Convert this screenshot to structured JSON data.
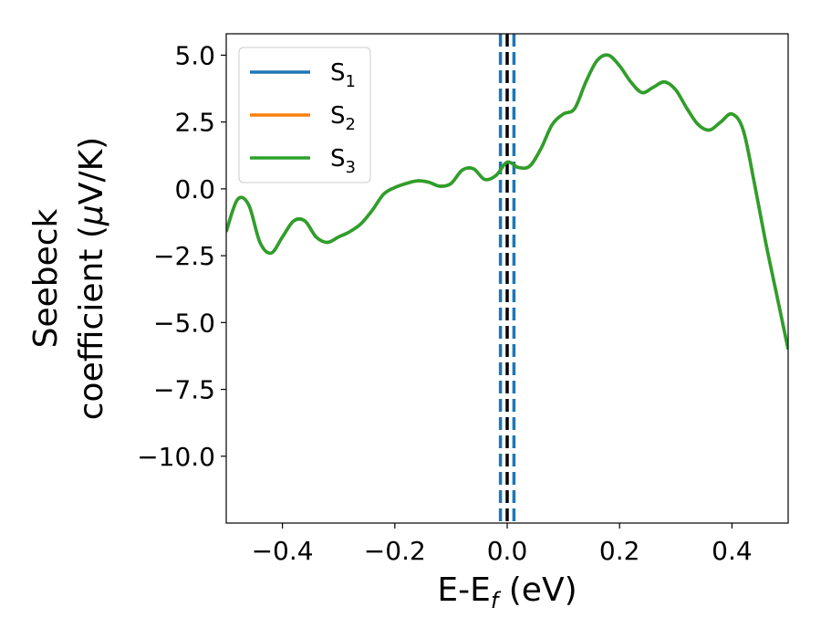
{
  "chart_data": {
    "type": "line",
    "xlabel": "E-E",
    "xlabel_sub": "f",
    "xlabel_unit": " (eV)",
    "ylabel_line1": "Seebeck",
    "ylabel_line2": "coefficient  (",
    "ylabel_mu": "μ",
    "ylabel_unit": "V/K)",
    "xlim": [
      -0.5,
      0.5
    ],
    "ylim": [
      -12.5,
      5.8
    ],
    "xticks": [
      -0.4,
      -0.2,
      0.0,
      0.2,
      0.4
    ],
    "xtick_labels": [
      "−0.4",
      "−0.2",
      "0.0",
      "0.2",
      "0.4"
    ],
    "yticks": [
      5.0,
      2.5,
      0.0,
      -2.5,
      -5.0,
      -7.5,
      -10.0
    ],
    "ytick_labels": [
      "5.0",
      "2.5",
      "0.0",
      "−2.5",
      "−5.0",
      "−7.5",
      "−10.0"
    ],
    "grid": false,
    "legend_position": "top-left",
    "vertical_lines": [
      {
        "x": -0.012,
        "color": "#1f77b4",
        "style": "dashed"
      },
      {
        "x": 0.012,
        "color": "#1f77b4",
        "style": "dashed"
      },
      {
        "x": 0.0,
        "color": "#000000",
        "style": "dashed"
      }
    ],
    "x": [
      -0.5,
      -0.48,
      -0.46,
      -0.44,
      -0.42,
      -0.4,
      -0.38,
      -0.36,
      -0.34,
      -0.32,
      -0.3,
      -0.28,
      -0.26,
      -0.24,
      -0.22,
      -0.2,
      -0.18,
      -0.16,
      -0.14,
      -0.12,
      -0.1,
      -0.08,
      -0.06,
      -0.04,
      -0.02,
      0.0,
      0.02,
      0.04,
      0.06,
      0.08,
      0.1,
      0.12,
      0.14,
      0.16,
      0.18,
      0.2,
      0.22,
      0.24,
      0.26,
      0.28,
      0.3,
      0.32,
      0.34,
      0.36,
      0.38,
      0.4,
      0.42,
      0.44,
      0.46,
      0.48,
      0.5
    ],
    "series": [
      {
        "name": "S",
        "sub": "1",
        "color": "#1f77b4",
        "values": [
          -1.6,
          -0.4,
          -0.6,
          -2.0,
          -2.4,
          -1.8,
          -1.2,
          -1.2,
          -1.8,
          -2.0,
          -1.8,
          -1.6,
          -1.3,
          -0.8,
          -0.2,
          0.05,
          0.2,
          0.3,
          0.25,
          0.1,
          0.2,
          0.7,
          0.75,
          0.35,
          0.5,
          1.0,
          0.8,
          0.85,
          1.5,
          2.4,
          2.8,
          3.0,
          4.0,
          4.8,
          5.0,
          4.6,
          4.0,
          3.6,
          3.8,
          4.0,
          3.7,
          3.0,
          2.4,
          2.2,
          2.5,
          2.8,
          2.2,
          0.2,
          -2.0,
          -4.0,
          -6.0
        ]
      },
      {
        "name": "S",
        "sub": "2",
        "color": "#ff7f0e",
        "values": [
          -1.6,
          -0.4,
          -0.6,
          -2.0,
          -2.4,
          -1.8,
          -1.2,
          -1.2,
          -1.8,
          -2.0,
          -1.8,
          -1.6,
          -1.3,
          -0.8,
          -0.2,
          0.05,
          0.2,
          0.3,
          0.25,
          0.1,
          0.2,
          0.7,
          0.75,
          0.35,
          0.5,
          1.0,
          0.8,
          0.85,
          1.5,
          2.4,
          2.8,
          3.0,
          4.0,
          4.8,
          5.0,
          4.6,
          4.0,
          3.6,
          3.8,
          4.0,
          3.7,
          3.0,
          2.4,
          2.2,
          2.5,
          2.8,
          2.2,
          0.2,
          -2.0,
          -4.0,
          -6.0
        ]
      },
      {
        "name": "S",
        "sub": "3",
        "color": "#2ca02c",
        "values": [
          -1.6,
          -0.4,
          -0.6,
          -2.0,
          -2.4,
          -1.8,
          -1.2,
          -1.2,
          -1.8,
          -2.0,
          -1.8,
          -1.6,
          -1.3,
          -0.8,
          -0.2,
          0.05,
          0.2,
          0.3,
          0.25,
          0.1,
          0.2,
          0.7,
          0.75,
          0.35,
          0.5,
          1.0,
          0.8,
          0.85,
          1.5,
          2.4,
          2.8,
          3.0,
          4.0,
          4.8,
          5.0,
          4.6,
          4.0,
          3.6,
          3.8,
          4.0,
          3.7,
          3.0,
          2.4,
          2.2,
          2.5,
          2.8,
          2.2,
          0.2,
          -2.0,
          -4.0,
          -6.0
        ]
      }
    ]
  }
}
